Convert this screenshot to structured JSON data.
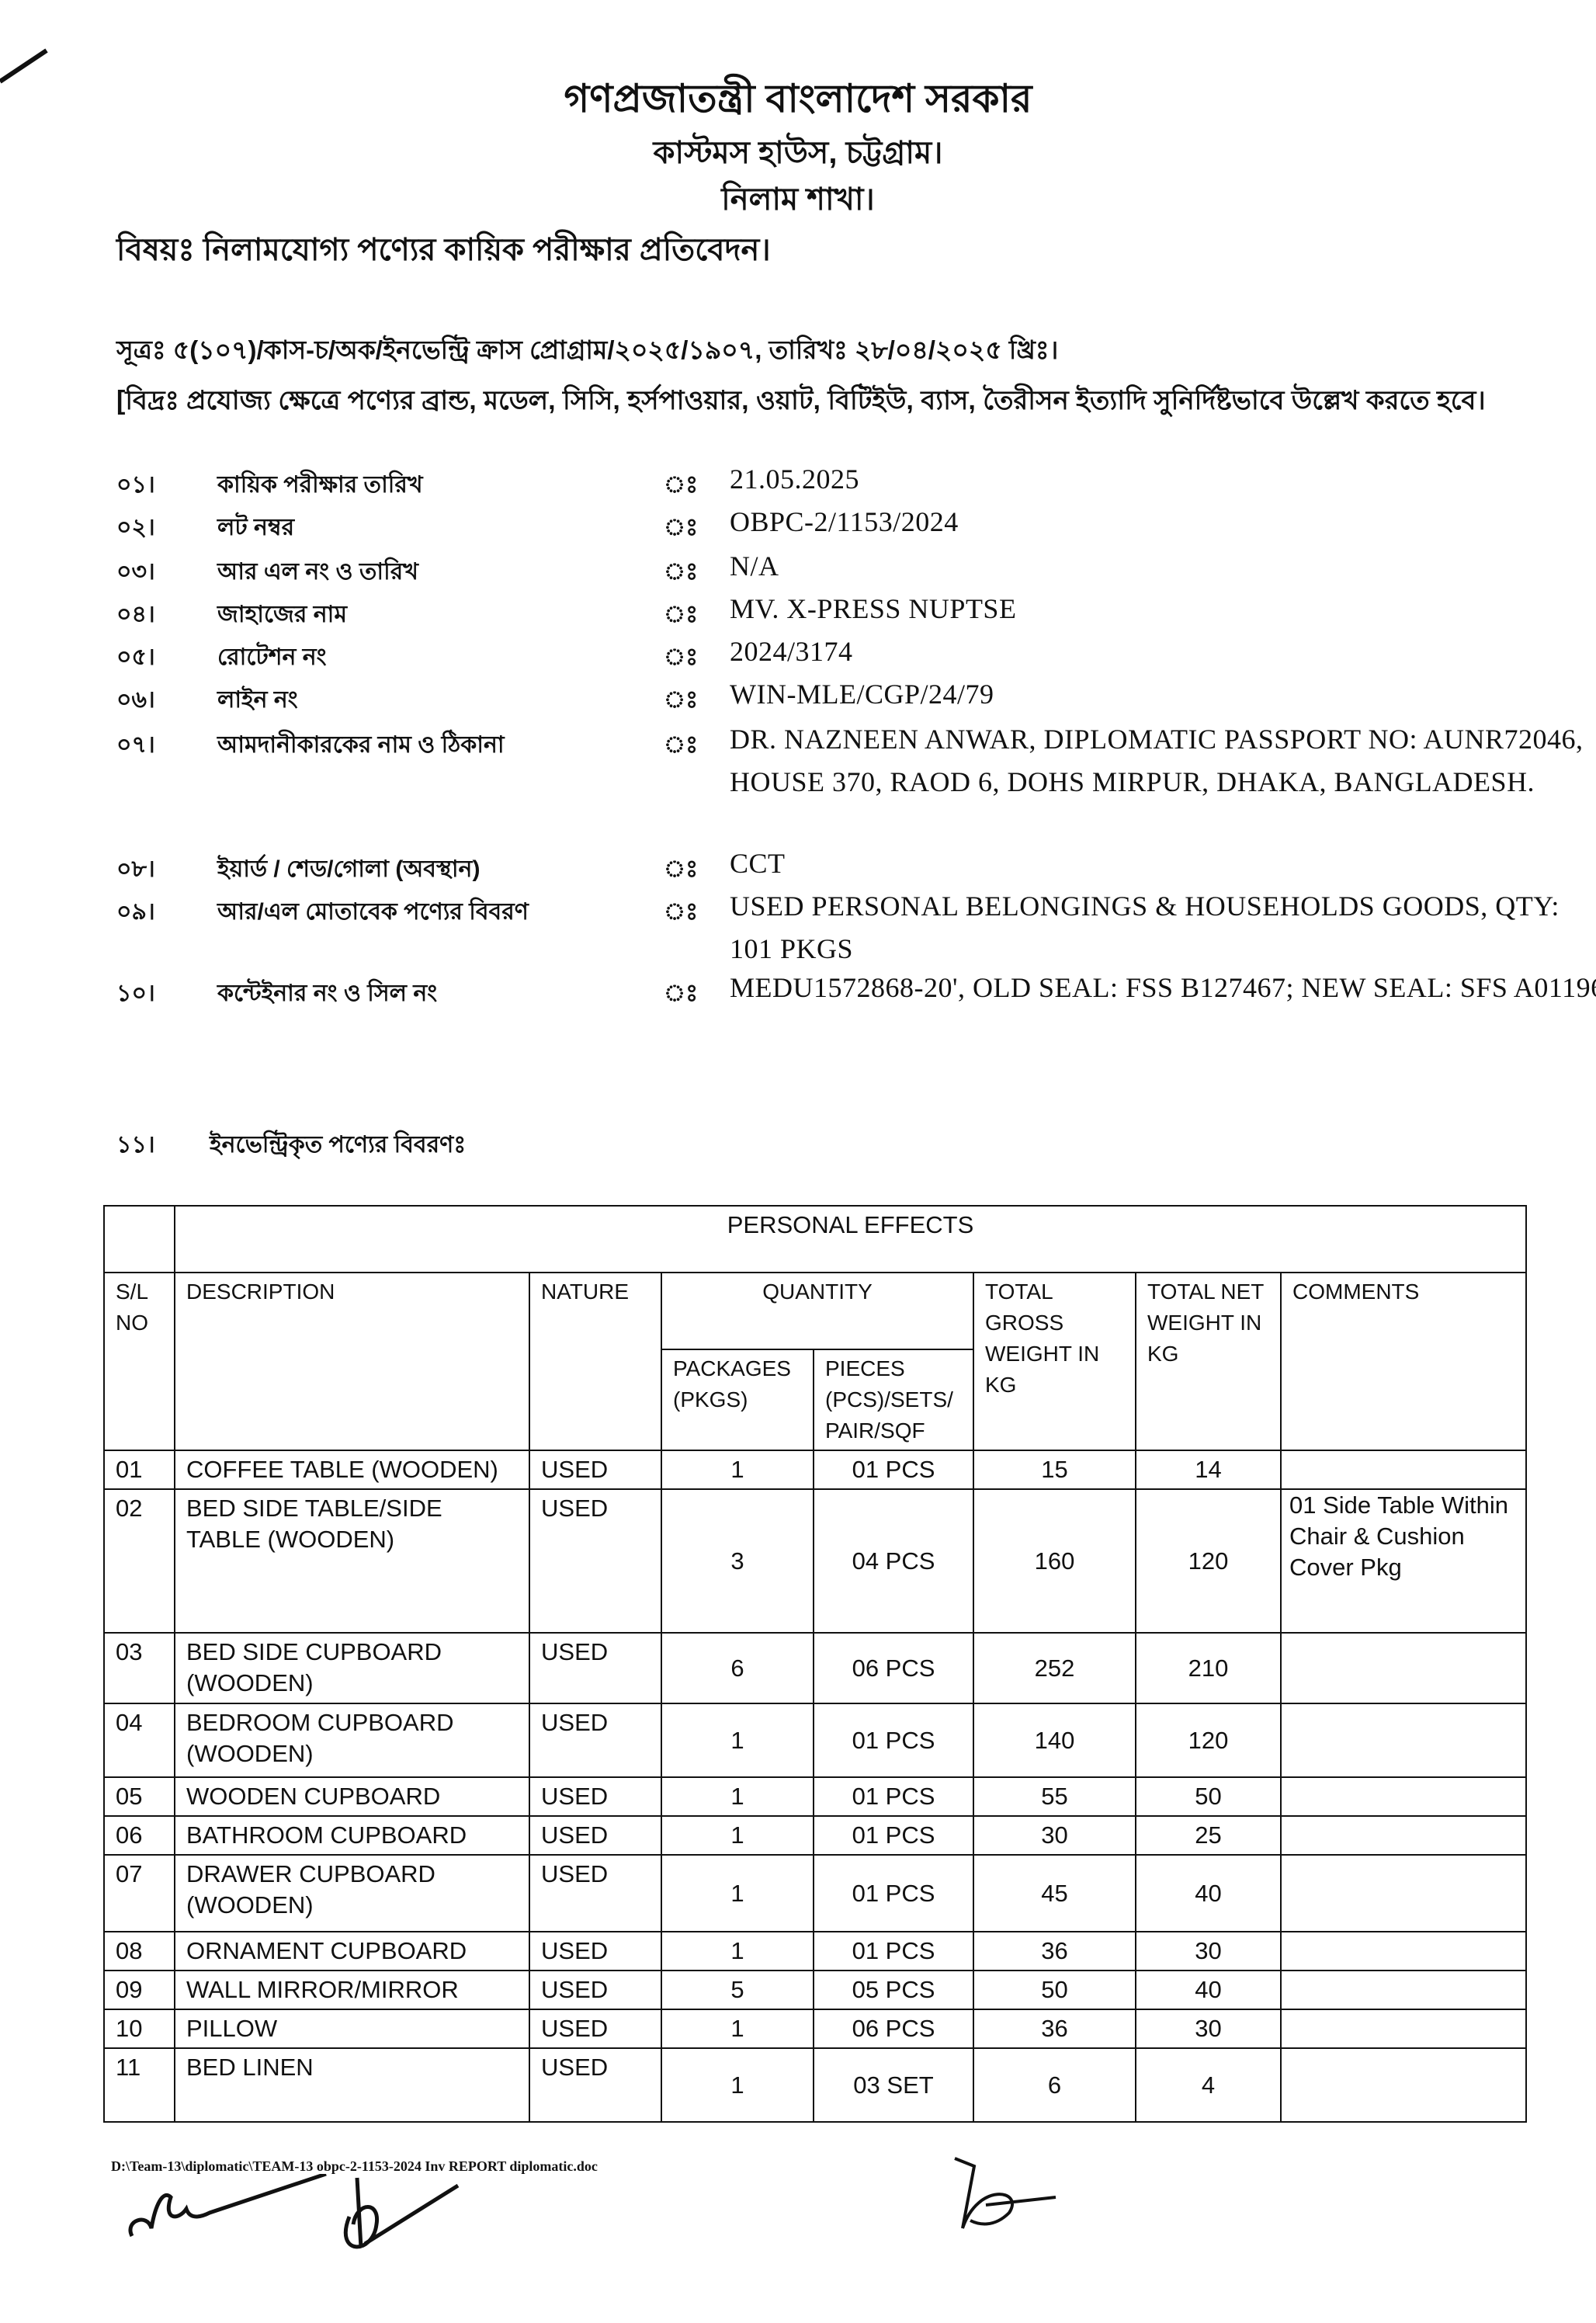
{
  "header": {
    "line1": "গণপ্রজাতন্ত্রী বাংলাদেশ সরকার",
    "line2": "কাস্টমস হাউস, চট্টগ্রাম।",
    "line3": "নিলাম শাখা।"
  },
  "subject": "বিষয়ঃ নিলামযোগ্য পণ্যের কায়িক পরীক্ষার প্রতিবেদন।",
  "reference": "সূত্রঃ ৫(১০৭)/কাস-চ/অক/ইনভেন্ট্রি ক্রাস প্রোগ্রাম/২০২৫/১৯০৭, তারিখঃ ২৮/০৪/২০২৫ খ্রিঃ।",
  "note": "[বিদ্রঃ প্রযোজ্য ক্ষেত্রে পণ্যের ব্রান্ড, মডেল, সিসি, হর্সপাওয়ার, ওয়াট, বিটিইউ, ব্যাস, তৈরীসন ইত্যাদি সুনির্দিষ্টভাবে উল্লেখ করতে হবে।",
  "info": [
    {
      "no": "০১।",
      "label": "কায়িক পরীক্ষার তারিখ",
      "value": "21.05.2025"
    },
    {
      "no": "০২।",
      "label": "লট নম্বর",
      "value": "OBPC-2/1153/2024"
    },
    {
      "no": "০৩।",
      "label": "আর এল নং ও তারিখ",
      "value": "N/A"
    },
    {
      "no": "০৪।",
      "label": "জাহাজের নাম",
      "value": "MV. X-PRESS NUPTSE"
    },
    {
      "no": "০৫।",
      "label": "রোটেশন নং",
      "value": "2024/3174"
    },
    {
      "no": "০৬।",
      "label": "লাইন নং",
      "value": "WIN-MLE/CGP/24/79"
    },
    {
      "no": "০৭।",
      "label": "আমদানীকারকের নাম ও ঠিকানা",
      "value": "DR. NAZNEEN ANWAR, DIPLOMATIC PASSPORT NO: AUNR72046, HOUSE 370, RAOD 6, DOHS MIRPUR, DHAKA, BANGLADESH."
    },
    {
      "no": "০৮।",
      "label": "ইয়ার্ড / শেড/গোলা (অবস্থান)",
      "value": "CCT"
    },
    {
      "no": "০৯।",
      "label": "আর/এল মোতাবেক পণ্যের বিবরণ",
      "value": "USED PERSONAL BELONGINGS & HOUSEHOLDS GOODS, QTY: 101 PKGS"
    },
    {
      "no": "১০।",
      "label": "কন্টেইনার নং ও সিল নং",
      "value": "MEDU1572868-20', OLD SEAL: FSS B127467; NEW SEAL: SFS A01196"
    }
  ],
  "colon": "ঃ",
  "section11": {
    "no": "১১।",
    "label": "ইনভেন্ট্রিকৃত পণ্যের বিবরণঃ"
  },
  "table": {
    "title": "PERSONAL EFFECTS",
    "headers": {
      "sl": "S/L NO",
      "description": "DESCRIPTION",
      "nature": "NATURE",
      "quantity": "QUANTITY",
      "packages": "PACKAGES (PKGS)",
      "pieces": "PIECES (PCS)/SETS/ PAIR/SQF",
      "gross": "TOTAL GROSS WEIGHT IN KG",
      "net": "TOTAL NET WEIGHT IN KG",
      "comments": "COMMENTS"
    },
    "rows": [
      {
        "sl": "01",
        "desc": "COFFEE TABLE (WOODEN)",
        "nature": "USED",
        "pkgs": "1",
        "pcs": "01 PCS",
        "gross": "15",
        "net": "14",
        "comments": ""
      },
      {
        "sl": "02",
        "desc": "BED SIDE TABLE/SIDE TABLE (WOODEN)",
        "nature": "USED",
        "pkgs": "3",
        "pcs": "04 PCS",
        "gross": "160",
        "net": "120",
        "comments": "01 Side Table Within Chair & Cushion Cover Pkg"
      },
      {
        "sl": "03",
        "desc": "BED SIDE CUPBOARD (WOODEN)",
        "nature": "USED",
        "pkgs": "6",
        "pcs": "06 PCS",
        "gross": "252",
        "net": "210",
        "comments": ""
      },
      {
        "sl": "04",
        "desc": "BEDROOM CUPBOARD (WOODEN)",
        "nature": "USED",
        "pkgs": "1",
        "pcs": "01 PCS",
        "gross": "140",
        "net": "120",
        "comments": ""
      },
      {
        "sl": "05",
        "desc": "WOODEN CUPBOARD",
        "nature": "USED",
        "pkgs": "1",
        "pcs": "01 PCS",
        "gross": "55",
        "net": "50",
        "comments": ""
      },
      {
        "sl": "06",
        "desc": "BATHROOM CUPBOARD",
        "nature": "USED",
        "pkgs": "1",
        "pcs": "01 PCS",
        "gross": "30",
        "net": "25",
        "comments": ""
      },
      {
        "sl": "07",
        "desc": "DRAWER CUPBOARD (WOODEN)",
        "nature": "USED",
        "pkgs": "1",
        "pcs": "01 PCS",
        "gross": "45",
        "net": "40",
        "comments": ""
      },
      {
        "sl": "08",
        "desc": "ORNAMENT CUPBOARD",
        "nature": "USED",
        "pkgs": "1",
        "pcs": "01 PCS",
        "gross": "36",
        "net": "30",
        "comments": ""
      },
      {
        "sl": "09",
        "desc": "WALL MIRROR/MIRROR",
        "nature": "USED",
        "pkgs": "5",
        "pcs": "05 PCS",
        "gross": "50",
        "net": "40",
        "comments": ""
      },
      {
        "sl": "10",
        "desc": "PILLOW",
        "nature": "USED",
        "pkgs": "1",
        "pcs": "06 PCS",
        "gross": "36",
        "net": "30",
        "comments": ""
      },
      {
        "sl": "11",
        "desc": "BED LINEN",
        "nature": "USED",
        "pkgs": "1",
        "pcs": "03 SET",
        "gross": "6",
        "net": "4",
        "comments": ""
      }
    ]
  },
  "footer": {
    "file_path": "D:\\Team-13\\diplomatic\\TEAM-13 obpc-2-1153-2024 Inv REPORT diplomatic.doc"
  }
}
